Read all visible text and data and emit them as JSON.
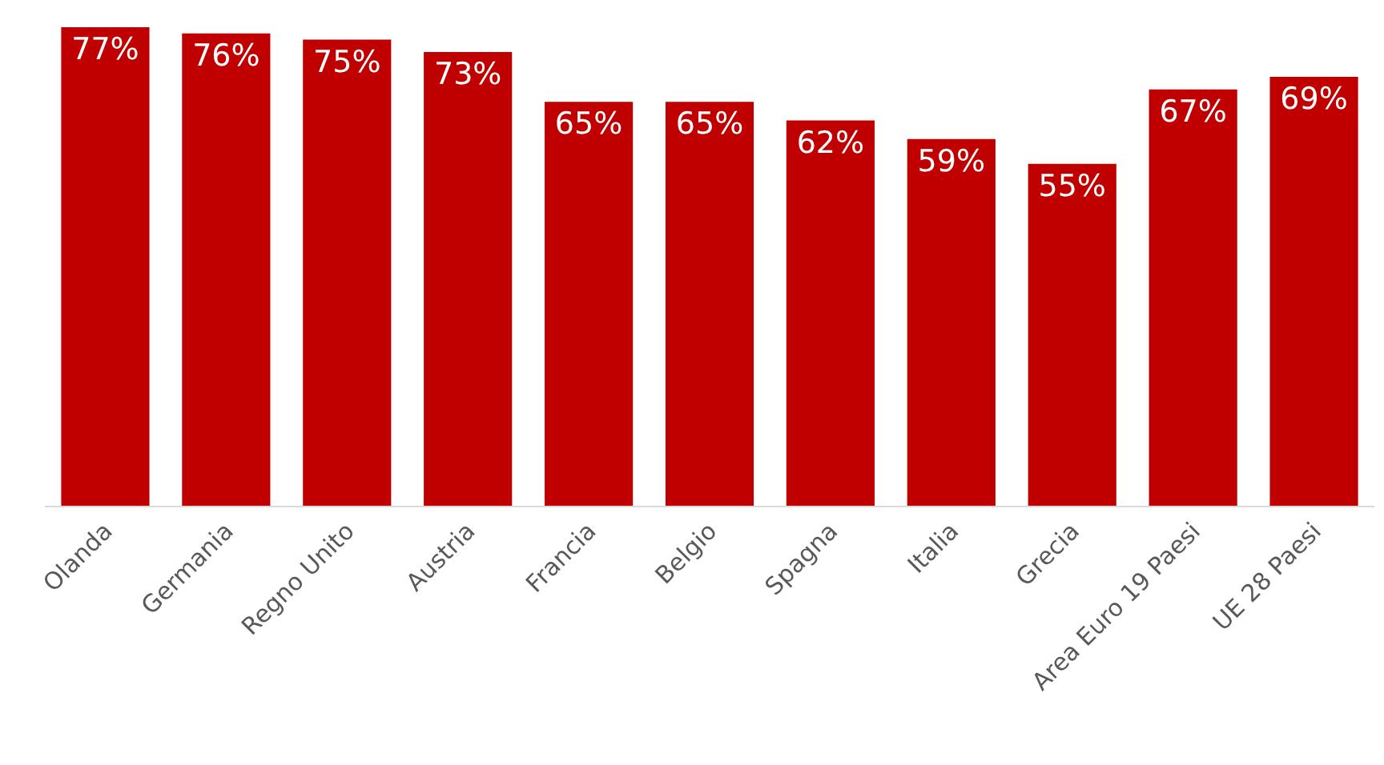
{
  "chart_data": {
    "type": "bar",
    "categories": [
      "Olanda",
      "Germania",
      "Regno Unito",
      "Austria",
      "Francia",
      "Belgio",
      "Spagna",
      "Italia",
      "Grecia",
      "Area Euro 19 Paesi",
      "UE 28 Paesi"
    ],
    "values": [
      77,
      76,
      75,
      73,
      65,
      65,
      62,
      59,
      55,
      67,
      69
    ],
    "value_labels": [
      "77%",
      "76%",
      "75%",
      "73%",
      "65%",
      "65%",
      "62%",
      "59%",
      "55%",
      "67%",
      "69%"
    ],
    "color": "#c00000"
  }
}
